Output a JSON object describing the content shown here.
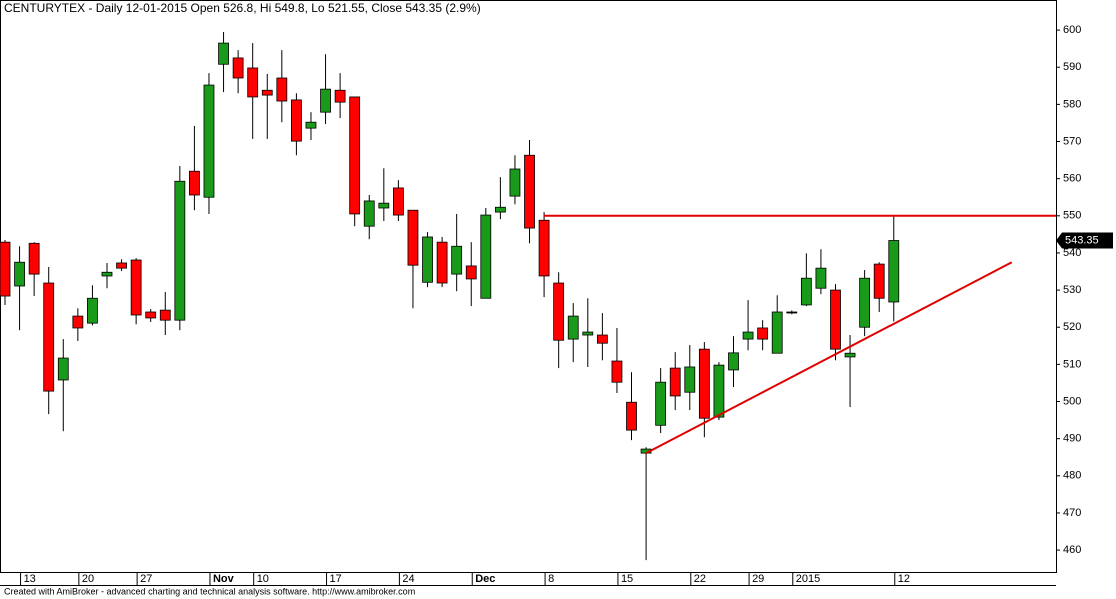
{
  "chart_data": {
    "type": "candlestick",
    "title": "CENTURYTEX - Daily 12-01-2015 Open 526.8, Hi 549.8, Lo 521.55, Close 543.35 (2.9%)",
    "footer": "Created with AmiBroker - advanced charting and technical analysis software. http://www.amibroker.com",
    "categories": [
      null,
      "13",
      null,
      null,
      null,
      "20",
      null,
      null,
      null,
      "27",
      null,
      null,
      null,
      null,
      "Nov",
      null,
      null,
      "10",
      null,
      null,
      null,
      null,
      "17",
      null,
      null,
      null,
      null,
      "24",
      null,
      null,
      null,
      null,
      "Dec",
      null,
      null,
      null,
      null,
      "8",
      null,
      null,
      null,
      null,
      "15",
      null,
      null,
      null,
      null,
      "22",
      null,
      null,
      null,
      "29",
      null,
      null,
      "2015",
      null,
      null,
      null,
      null,
      null,
      null,
      "12"
    ],
    "open": [
      542.9,
      531.1,
      542.6,
      531.9,
      505.8,
      523.0,
      521.1,
      533.8,
      537.3,
      538.1,
      524.1,
      524.6,
      521.9,
      562.0,
      555.0,
      590.8,
      592.5,
      589.8,
      583.8,
      587.1,
      581.2,
      573.6,
      577.9,
      583.8,
      582.0,
      547.2,
      552.1,
      557.5,
      551.5,
      532.1,
      542.9,
      534.3,
      536.5,
      527.8,
      551.0,
      555.3,
      566.3,
      548.8,
      531.9,
      516.8,
      517.9,
      517.9,
      510.9,
      499.8,
      486.1,
      493.6,
      509.0,
      502.5,
      514.1,
      495.8,
      508.5,
      516.8,
      519.8,
      513.0,
      524.1,
      526.0,
      530.5,
      530.0,
      512.0,
      520.0,
      537.0,
      526.8
    ],
    "high": [
      543.5,
      541.8,
      542.9,
      536.2,
      516.8,
      525.1,
      531.3,
      537.3,
      538.3,
      538.6,
      524.9,
      529.5,
      563.4,
      574.2,
      588.4,
      599.5,
      594.6,
      596.5,
      588.2,
      594.6,
      583.0,
      577.9,
      593.5,
      588.4,
      582.0,
      555.6,
      562.8,
      559.6,
      551.5,
      545.6,
      544.3,
      550.5,
      542.9,
      552.1,
      560.4,
      566.3,
      570.4,
      551.0,
      534.8,
      526.5,
      527.8,
      523.8,
      519.8,
      507.9,
      487.7,
      509.0,
      513.3,
      515.2,
      516.0,
      510.6,
      517.6,
      527.3,
      521.9,
      528.6,
      524.5,
      539.9,
      541.0,
      531.6,
      517.9,
      535.4,
      537.5,
      549.8
    ],
    "low": [
      526.0,
      519.2,
      528.4,
      496.6,
      492.0,
      516.3,
      520.5,
      530.5,
      535.1,
      520.8,
      521.4,
      517.9,
      519.2,
      551.5,
      550.5,
      583.3,
      583.0,
      570.7,
      570.7,
      575.2,
      566.3,
      570.4,
      574.7,
      576.3,
      547.2,
      543.7,
      548.6,
      548.6,
      525.1,
      530.8,
      530.8,
      529.7,
      525.7,
      527.8,
      549.1,
      553.1,
      542.6,
      528.1,
      509.0,
      510.6,
      509.3,
      511.1,
      502.3,
      489.6,
      457.3,
      491.5,
      497.7,
      497.7,
      490.4,
      495.0,
      503.9,
      513.8,
      513.8,
      513.0,
      523.5,
      525.7,
      528.9,
      511.1,
      498.5,
      517.6,
      524.1,
      521.55
    ],
    "close": [
      528.4,
      537.5,
      534.3,
      502.8,
      511.7,
      519.8,
      527.8,
      534.8,
      535.9,
      523.3,
      522.5,
      521.9,
      559.3,
      555.6,
      585.2,
      596.5,
      587.1,
      582.0,
      582.5,
      580.9,
      570.1,
      575.2,
      584.1,
      580.6,
      550.5,
      554.0,
      553.4,
      550.2,
      536.7,
      544.3,
      531.9,
      541.8,
      533.0,
      550.2,
      552.3,
      562.6,
      546.7,
      533.8,
      516.5,
      523.0,
      518.7,
      515.7,
      505.2,
      492.3,
      487.2,
      505.2,
      501.5,
      509.3,
      495.5,
      509.8,
      513.1,
      518.7,
      516.8,
      524.1,
      524.1,
      533.2,
      535.9,
      514.1,
      513.0,
      533.2,
      527.8,
      543.35
    ],
    "up_color": "#1a9a1a",
    "down_color": "#ff0000",
    "ylim": [
      454.1,
      608.1
    ],
    "yticks": [
      460,
      470,
      480,
      490,
      500,
      510,
      520,
      530,
      540,
      550,
      560,
      570,
      580,
      590,
      600
    ],
    "hline": {
      "y": 550,
      "from": 37,
      "color": "#e00000"
    },
    "trendline": {
      "points": [
        [
          44,
          486.1
        ],
        [
          69.1,
          537.5
        ]
      ],
      "color": "#e00000"
    }
  }
}
